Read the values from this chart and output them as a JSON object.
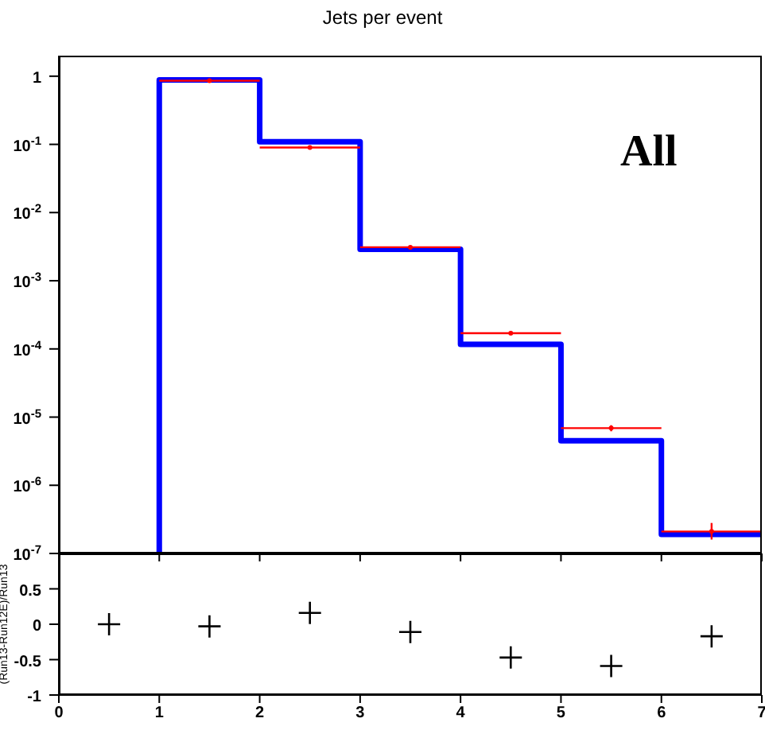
{
  "chart_data": [
    {
      "type": "histogram",
      "title": "Jets per event",
      "annotations": [
        "All"
      ],
      "bins": [
        1,
        2,
        3,
        4,
        5,
        6,
        7
      ],
      "series": [
        {
          "color": "#0000ff",
          "values": [
            0.88,
            0.109,
            0.0029,
            0.000117,
            4.5e-06,
            1.9e-07
          ]
        },
        {
          "type": "scatter",
          "color": "#ff0000",
          "marker": "circle",
          "x": [
            1.5,
            2.5,
            3.5,
            4.5,
            5.5,
            6.5
          ],
          "values": [
            0.86,
            0.09,
            0.0031,
            0.00017,
            6.9e-06,
            2.1e-07
          ],
          "xerrors": [
            0.5,
            0.5,
            0.5,
            0.5,
            0.5,
            0.5
          ],
          "errors": [
            null,
            null,
            null,
            [
              0.00016,
              0.00018
            ],
            [
              6.2e-06,
              7.6e-06
            ],
            [
              1.6e-07,
              2.8e-07
            ]
          ]
        }
      ],
      "log": "y",
      "xlim": [
        0,
        7
      ],
      "xticks": [
        0,
        1,
        2,
        3,
        4,
        5,
        6,
        7
      ],
      "ylim": [
        1e-07,
        2
      ],
      "yticks": [
        {
          "value": 1e-07,
          "label": "10$^{-7}$"
        },
        {
          "value": 1e-06,
          "label": "10$^{-6}$"
        },
        {
          "value": 1e-05,
          "label": "10$^{-5}$"
        },
        {
          "value": 0.0001,
          "label": "10$^{-4}$"
        },
        {
          "value": 0.001,
          "label": "10$^{-3}$"
        },
        {
          "value": 0.01,
          "label": "10$^{-2}$"
        },
        {
          "value": 0.1,
          "label": "10$^{-1}$"
        },
        1
      ],
      "tick_labels": "y"
    },
    {
      "type": "scatter",
      "ylabel": "(Run13-Run12E)/Run13",
      "marker": "cross",
      "series": [
        {
          "color": "#000000",
          "x": [
            0.5,
            1.5,
            2.5,
            3.5,
            4.5,
            5.5,
            6.5
          ],
          "values": [
            0,
            -0.03,
            0.16,
            -0.11,
            -0.47,
            -0.59,
            -0.17
          ]
        }
      ],
      "xlim": [
        0,
        7
      ],
      "xticks": [
        0,
        1,
        2,
        3,
        4,
        5,
        6,
        7
      ],
      "ylim": [
        -1,
        1
      ],
      "yticks": [
        -1,
        -0.5,
        0,
        0.5
      ]
    }
  ]
}
